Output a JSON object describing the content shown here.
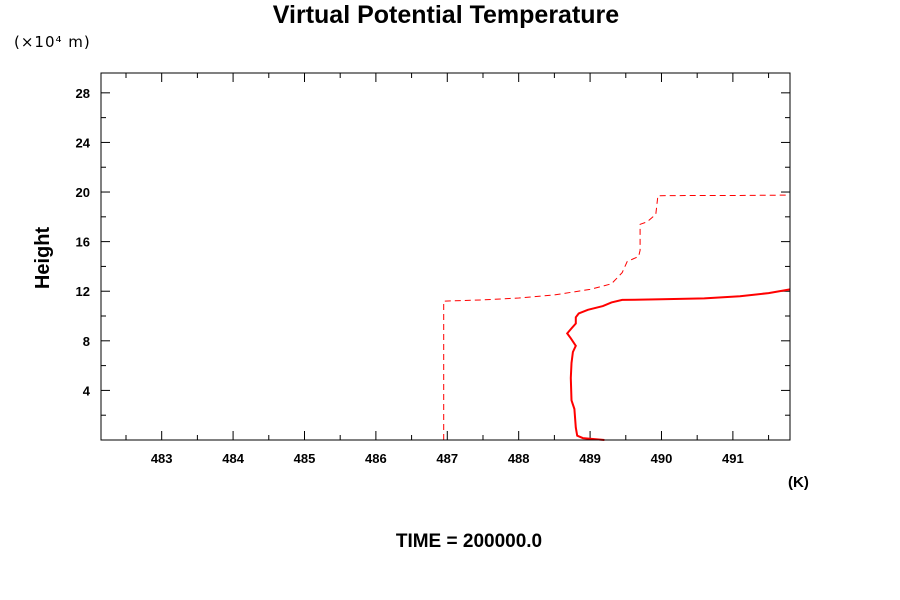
{
  "chart_data": {
    "type": "line",
    "title": "Virtual Potential Temperature",
    "ylabel": "Height",
    "y_unit": "(×10⁴ m)",
    "x_unit": "(K)",
    "xlim": [
      482.15,
      491.8
    ],
    "ylim": [
      0,
      29.6
    ],
    "x_ticks": [
      483,
      484,
      485,
      486,
      487,
      488,
      489,
      490,
      491
    ],
    "y_ticks": [
      4,
      8,
      12,
      16,
      20,
      24,
      28
    ],
    "grid": false,
    "legend": "none",
    "series": [
      {
        "style": "solid",
        "color": "#ff0000",
        "points": [
          [
            489.2,
            0.0
          ],
          [
            488.9,
            0.15
          ],
          [
            488.82,
            0.35
          ],
          [
            488.8,
            1.0
          ],
          [
            488.78,
            2.5
          ],
          [
            488.74,
            3.2
          ],
          [
            488.73,
            5.0
          ],
          [
            488.74,
            6.2
          ],
          [
            488.76,
            7.1
          ],
          [
            488.8,
            7.6
          ],
          [
            488.73,
            8.2
          ],
          [
            488.68,
            8.6
          ],
          [
            488.74,
            9.0
          ],
          [
            488.8,
            9.4
          ],
          [
            488.8,
            9.9
          ],
          [
            488.84,
            10.2
          ],
          [
            488.97,
            10.5
          ],
          [
            489.18,
            10.8
          ],
          [
            489.3,
            11.1
          ],
          [
            489.45,
            11.3
          ],
          [
            490.0,
            11.35
          ],
          [
            490.6,
            11.42
          ],
          [
            491.1,
            11.6
          ],
          [
            491.5,
            11.85
          ],
          [
            491.8,
            12.15
          ]
        ]
      },
      {
        "style": "dashed",
        "color": "#ff0000",
        "points": [
          [
            486.95,
            0.0
          ],
          [
            486.95,
            11.2
          ],
          [
            487.5,
            11.3
          ],
          [
            488.0,
            11.45
          ],
          [
            488.5,
            11.7
          ],
          [
            489.0,
            12.15
          ],
          [
            489.3,
            12.6
          ],
          [
            489.45,
            13.5
          ],
          [
            489.52,
            14.4
          ],
          [
            489.6,
            14.6
          ],
          [
            489.68,
            14.8
          ],
          [
            489.7,
            15.3
          ],
          [
            489.7,
            17.4
          ],
          [
            489.8,
            17.6
          ],
          [
            489.92,
            18.2
          ],
          [
            489.95,
            19.7
          ],
          [
            490.5,
            19.72
          ],
          [
            491.0,
            19.72
          ],
          [
            491.8,
            19.75
          ]
        ]
      }
    ]
  },
  "footer": "TIME = 200000.0"
}
